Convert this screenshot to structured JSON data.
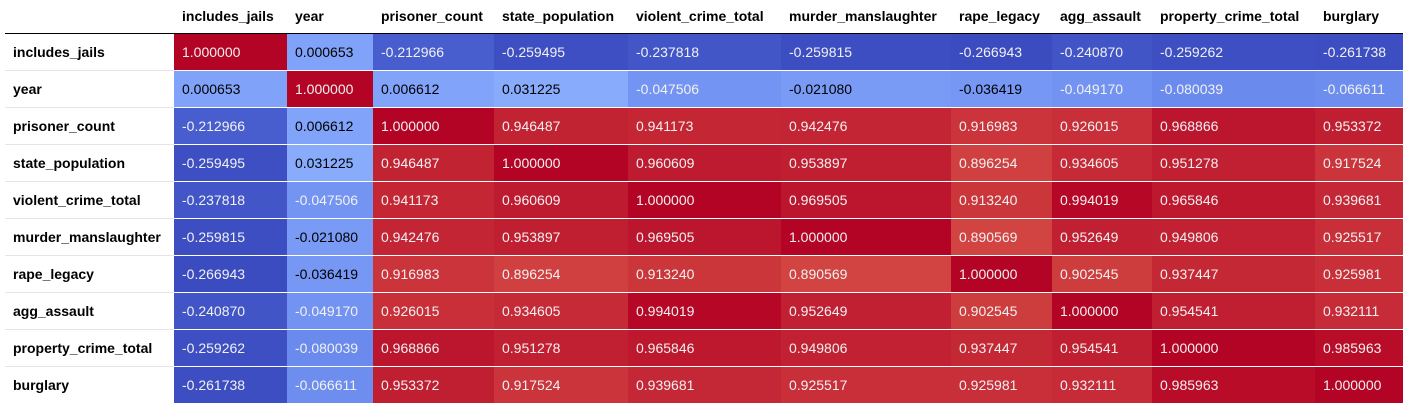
{
  "chart_data": {
    "type": "heatmap",
    "colormap": "coolwarm",
    "vmin": -0.266943,
    "vmax": 1.0,
    "columns": [
      "includes_jails",
      "year",
      "prisoner_count",
      "state_population",
      "violent_crime_total",
      "murder_manslaughter",
      "rape_legacy",
      "agg_assault",
      "property_crime_total",
      "burglary"
    ],
    "rows": [
      "includes_jails",
      "year",
      "prisoner_count",
      "state_population",
      "violent_crime_total",
      "murder_manslaughter",
      "rape_legacy",
      "agg_assault",
      "property_crime_total",
      "burglary"
    ],
    "values": [
      [
        "1.000000",
        "0.000653",
        "-0.212966",
        "-0.259495",
        "-0.237818",
        "-0.259815",
        "-0.266943",
        "-0.240870",
        "-0.259262",
        "-0.261738"
      ],
      [
        "0.000653",
        "1.000000",
        "0.006612",
        "0.031225",
        "-0.047506",
        "-0.021080",
        "-0.036419",
        "-0.049170",
        "-0.080039",
        "-0.066611"
      ],
      [
        "-0.212966",
        "0.006612",
        "1.000000",
        "0.946487",
        "0.941173",
        "0.942476",
        "0.916983",
        "0.926015",
        "0.968866",
        "0.953372"
      ],
      [
        "-0.259495",
        "0.031225",
        "0.946487",
        "1.000000",
        "0.960609",
        "0.953897",
        "0.896254",
        "0.934605",
        "0.951278",
        "0.917524"
      ],
      [
        "-0.237818",
        "-0.047506",
        "0.941173",
        "0.960609",
        "1.000000",
        "0.969505",
        "0.913240",
        "0.994019",
        "0.965846",
        "0.939681"
      ],
      [
        "-0.259815",
        "-0.021080",
        "0.942476",
        "0.953897",
        "0.969505",
        "1.000000",
        "0.890569",
        "0.952649",
        "0.949806",
        "0.925517"
      ],
      [
        "-0.266943",
        "-0.036419",
        "0.916983",
        "0.896254",
        "0.913240",
        "0.890569",
        "1.000000",
        "0.902545",
        "0.937447",
        "0.925981"
      ],
      [
        "-0.240870",
        "-0.049170",
        "0.926015",
        "0.934605",
        "0.994019",
        "0.952649",
        "0.902545",
        "1.000000",
        "0.954541",
        "0.932111"
      ],
      [
        "-0.259262",
        "-0.080039",
        "0.968866",
        "0.951278",
        "0.965846",
        "0.949806",
        "0.937447",
        "0.954541",
        "1.000000",
        "0.985963"
      ],
      [
        "-0.261738",
        "-0.066611",
        "0.953372",
        "0.917524",
        "0.939681",
        "0.925517",
        "0.925981",
        "0.932111",
        "0.985963",
        "1.000000"
      ]
    ]
  }
}
